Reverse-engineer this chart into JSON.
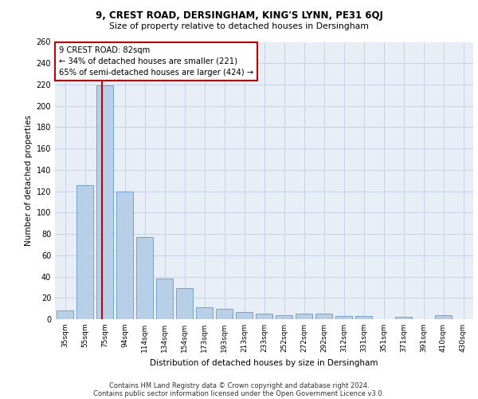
{
  "title1": "9, CREST ROAD, DERSINGHAM, KING'S LYNN, PE31 6QJ",
  "title2": "Size of property relative to detached houses in Dersingham",
  "xlabel": "Distribution of detached houses by size in Dersingham",
  "ylabel": "Number of detached properties",
  "categories": [
    "35sqm",
    "55sqm",
    "75sqm",
    "94sqm",
    "114sqm",
    "134sqm",
    "154sqm",
    "173sqm",
    "193sqm",
    "213sqm",
    "233sqm",
    "252sqm",
    "272sqm",
    "292sqm",
    "312sqm",
    "331sqm",
    "351sqm",
    "371sqm",
    "391sqm",
    "410sqm",
    "430sqm"
  ],
  "values": [
    8,
    126,
    219,
    120,
    77,
    38,
    29,
    11,
    10,
    7,
    5,
    4,
    5,
    5,
    3,
    3,
    0,
    2,
    0,
    4,
    0
  ],
  "bar_color": "#b8cfe8",
  "bar_edge_color": "#6699cc",
  "vline_x": 1.85,
  "vline_color": "#cc0000",
  "annotation_line1": "9 CREST ROAD: 82sqm",
  "annotation_line2": "← 34% of detached houses are smaller (221)",
  "annotation_line3": "65% of semi-detached houses are larger (424) →",
  "annotation_box_color": "#ffffff",
  "annotation_box_edge_color": "#cc0000",
  "grid_color": "#c8d4e4",
  "background_color": "#e8eef6",
  "footer1": "Contains HM Land Registry data © Crown copyright and database right 2024.",
  "footer2": "Contains public sector information licensed under the Open Government Licence v3.0.",
  "ylim": [
    0,
    260
  ],
  "yticks": [
    0,
    20,
    40,
    60,
    80,
    100,
    120,
    140,
    160,
    180,
    200,
    220,
    240,
    260
  ]
}
